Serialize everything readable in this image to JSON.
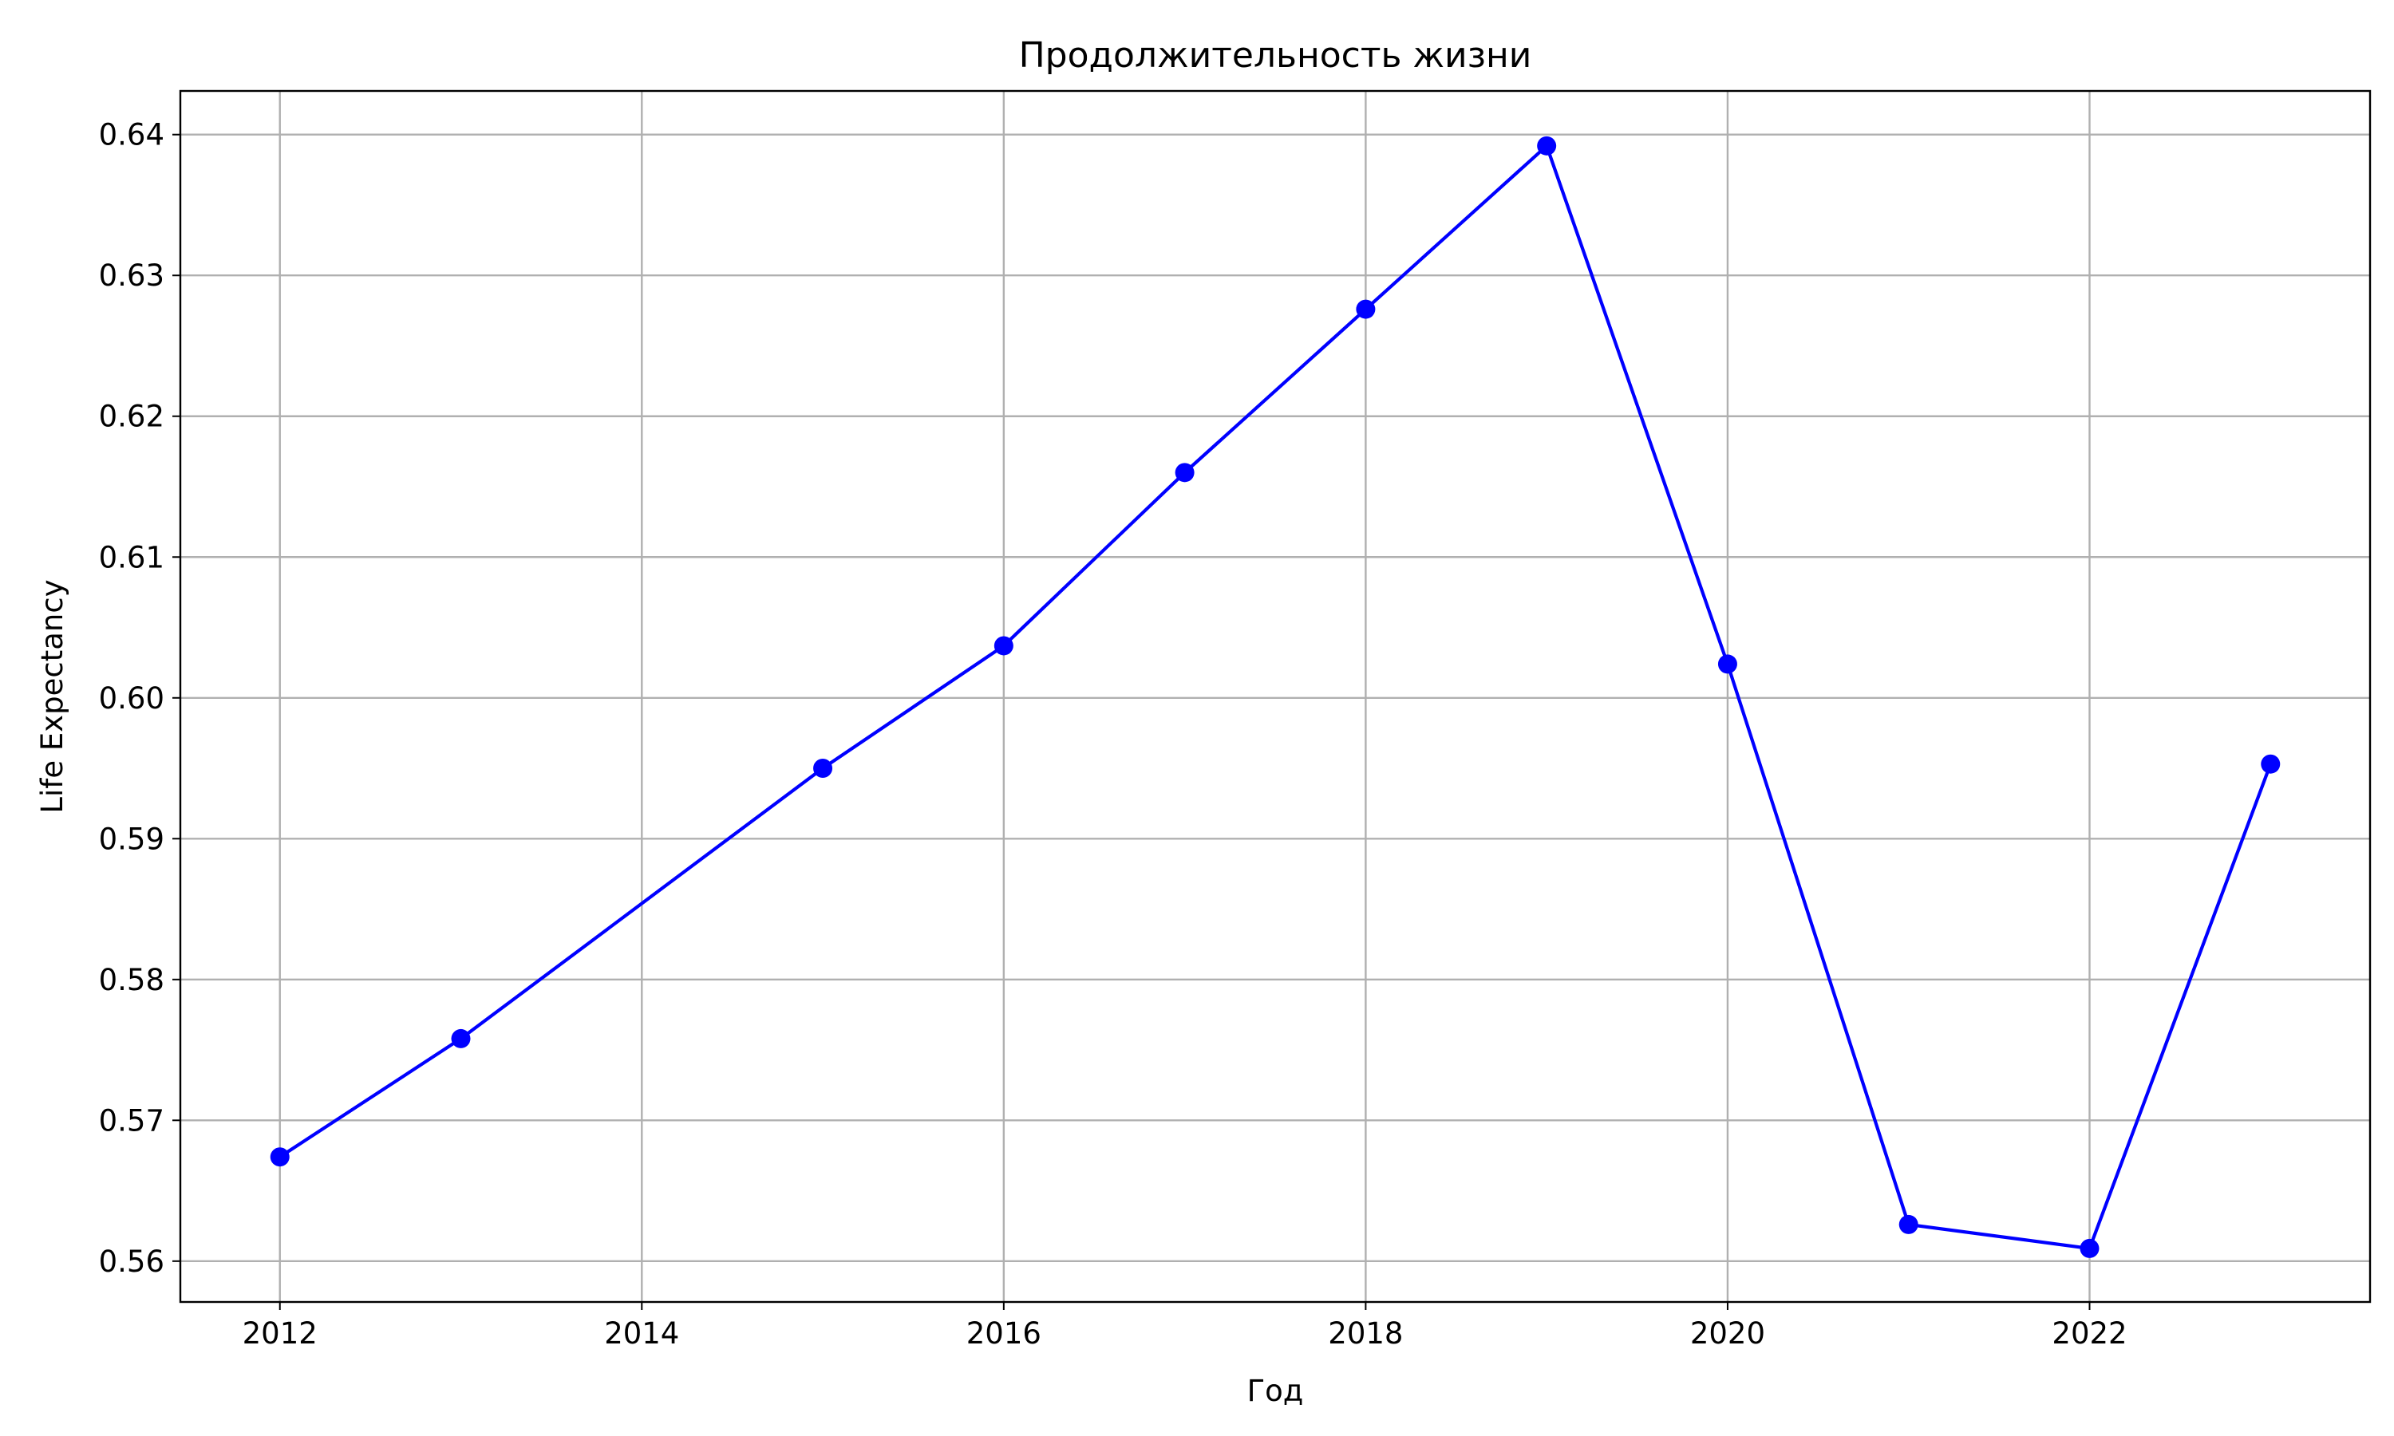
{
  "chart_data": {
    "type": "line",
    "title": "Продолжительность жизни",
    "xlabel": "Год",
    "ylabel": "Life Expectancy",
    "x": [
      2012,
      2013,
      2015,
      2016,
      2017,
      2018,
      2019,
      2020,
      2021,
      2022,
      2023
    ],
    "series": [
      {
        "values": [
          0.5674,
          0.5758,
          0.595,
          0.6037,
          0.616,
          0.6276,
          0.6392,
          0.6024,
          0.5626,
          0.5609,
          0.5953
        ],
        "color": "#0000ff",
        "marker": "circle"
      }
    ],
    "xlim": [
      2011.45,
      2023.55
    ],
    "ylim": [
      0.5571,
      0.6431
    ],
    "xticks": [
      2012,
      2014,
      2016,
      2018,
      2020,
      2022
    ],
    "yticks": [
      0.56,
      0.57,
      0.58,
      0.59,
      0.6,
      0.61,
      0.62,
      0.63,
      0.64
    ],
    "ytick_labels": [
      "0.56",
      "0.57",
      "0.58",
      "0.59",
      "0.60",
      "0.61",
      "0.62",
      "0.63",
      "0.64"
    ],
    "grid": true,
    "legend": "none"
  }
}
